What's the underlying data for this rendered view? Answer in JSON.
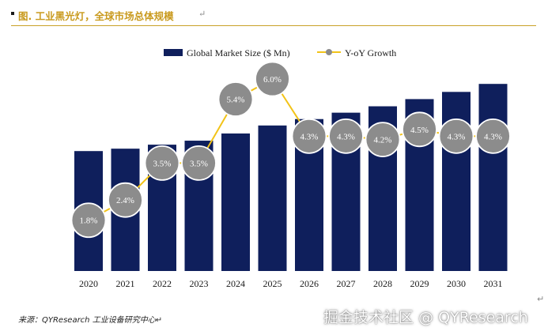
{
  "figure": {
    "title": "图.  工业黑光灯，全球市场总体规模",
    "paragraph_mark": "↵",
    "source": "来源：QYResearch 工业设备研究中心↵",
    "watermark": "掘金技术社区 @ QYResearch"
  },
  "chart_data": {
    "type": "bar",
    "categories": [
      "2020",
      "2021",
      "2022",
      "2023",
      "2024",
      "2025",
      "2026",
      "2027",
      "2028",
      "2029",
      "2030",
      "2031"
    ],
    "series": [
      {
        "name": "Global Market Size ($ Mn)",
        "type": "bar",
        "color": "#0f1f5c",
        "values": [
          150,
          153,
          158,
          163,
          172,
          182,
          190,
          198,
          206,
          215,
          224,
          234
        ]
      },
      {
        "name": "Y-oY Growth",
        "type": "line",
        "color": "#f2c318",
        "marker_color": "#8c8c8c",
        "values": [
          1.8,
          2.4,
          3.5,
          3.5,
          5.4,
          6.0,
          4.3,
          4.3,
          4.2,
          4.5,
          4.3,
          4.3
        ],
        "labels": [
          "1.8%",
          "2.4%",
          "3.5%",
          "3.5%",
          "5.4%",
          "6.0%",
          "4.3%",
          "4.3%",
          "4.2%",
          "4.5%",
          "4.3%",
          "4.3%"
        ]
      }
    ],
    "ylim_bar": [
      0,
      250
    ],
    "ylim_growth": [
      0,
      7
    ],
    "legend_position": "top-center",
    "grid": false
  }
}
